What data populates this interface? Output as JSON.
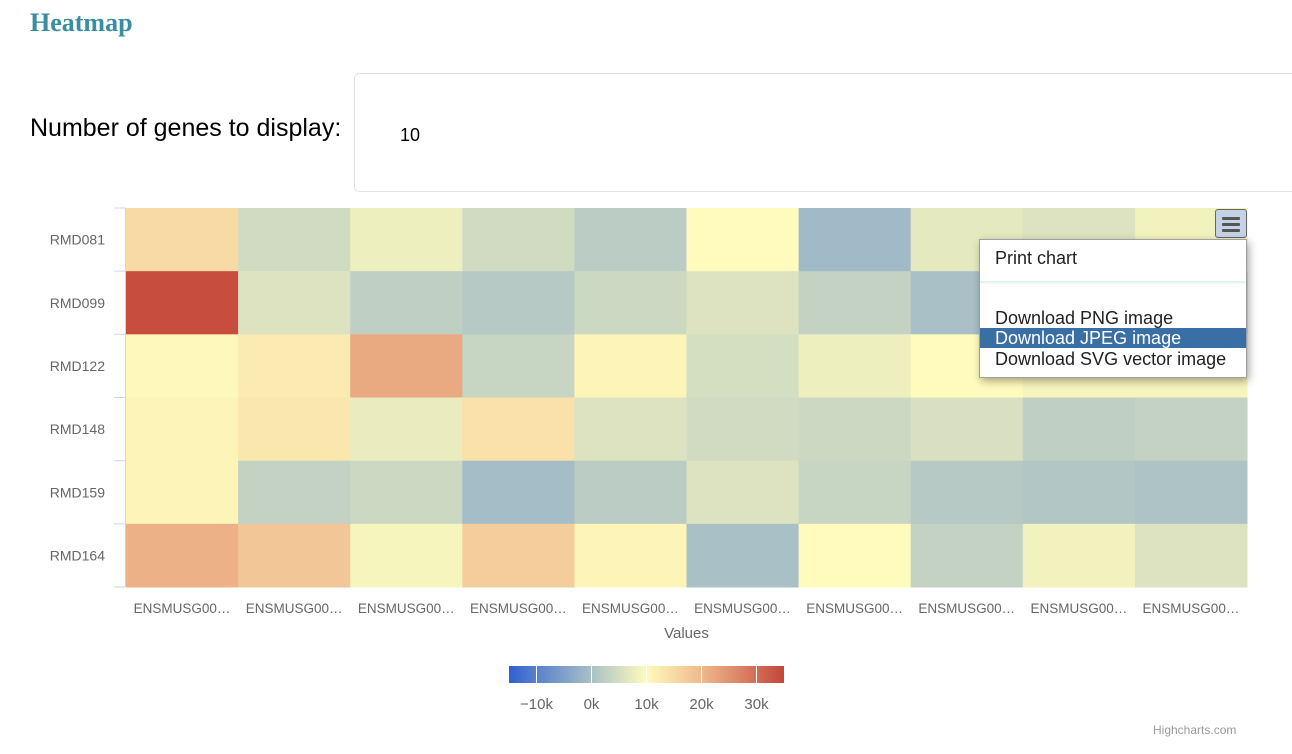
{
  "page": {
    "title": "Heatmap",
    "genes_label": "Number of genes to display:",
    "genes_value": "10"
  },
  "menu": {
    "button_icon": "hamburger-menu-icon",
    "items": [
      {
        "label": "Print chart"
      },
      {
        "label": "Download PNG image"
      },
      {
        "label": "Download JPEG image",
        "highlighted": true
      },
      {
        "label": "Download SVG vector image"
      }
    ]
  },
  "credits": "Highcharts.com",
  "chart_data": {
    "type": "heatmap",
    "xlabel": "Values",
    "x_categories": [
      "ENSMUSG00…",
      "ENSMUSG00…",
      "ENSMUSG00…",
      "ENSMUSG00…",
      "ENSMUSG00…",
      "ENSMUSG00…",
      "ENSMUSG00…",
      "ENSMUSG00…",
      "ENSMUSG00…",
      "ENSMUSG00…"
    ],
    "y_categories": [
      "RMD081",
      "RMD099",
      "RMD122",
      "RMD148",
      "RMD159",
      "RMD164"
    ],
    "values": [
      [
        15000,
        4500,
        8000,
        4500,
        2000,
        10000,
        -1000,
        7000,
        6000,
        8500
      ],
      [
        34000,
        6000,
        2500,
        1500,
        4000,
        6000,
        3000,
        0,
        3000,
        3000
      ],
      [
        10500,
        12500,
        22000,
        3500,
        11000,
        5000,
        8000,
        10000,
        9000,
        9000
      ],
      [
        11000,
        13000,
        7500,
        14000,
        6000,
        4500,
        4000,
        5500,
        2500,
        3000
      ],
      [
        11000,
        3000,
        4000,
        -500,
        2000,
        6000,
        3500,
        1500,
        1000,
        500
      ],
      [
        21000,
        18000,
        9000,
        17000,
        11000,
        0,
        10000,
        3000,
        8500,
        6000
      ]
    ],
    "colorAxis": {
      "min": -15000,
      "max": 35000,
      "ticks": [
        -10000,
        0,
        10000,
        20000,
        30000
      ],
      "tick_labels": [
        "−10k",
        "0k",
        "10k",
        "20k",
        "30k"
      ],
      "stops": [
        {
          "value": -15000,
          "color": "#3060cf"
        },
        {
          "value": 0,
          "color": "#a9c0c6"
        },
        {
          "value": 10000,
          "color": "#fffbbc"
        },
        {
          "value": 20000,
          "color": "#efb98c"
        },
        {
          "value": 35000,
          "color": "#c4463a"
        }
      ]
    }
  }
}
